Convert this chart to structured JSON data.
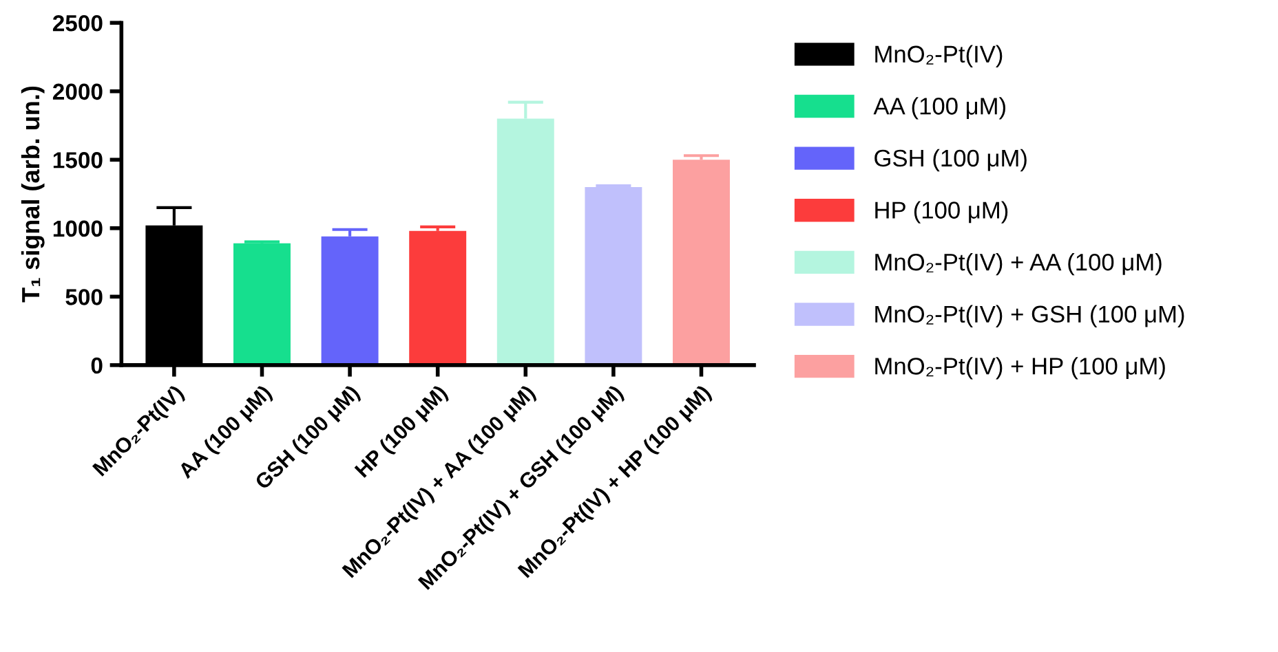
{
  "chart_data": {
    "type": "bar",
    "ylabel": "T₁ signal (arb. un.)",
    "categories": [
      "MnO₂-Pt(IV)",
      "AA (100 μM)",
      "GSH (100 μM)",
      "HP (100 μM)",
      "MnO₂-Pt(IV) + AA (100 μM)",
      "MnO₂-Pt(IV) + GSH (100 μM)",
      "MnO₂-Pt(IV) + HP (100 μM)"
    ],
    "series": [
      {
        "name": "MnO₂-Pt(IV)",
        "color": "#000000",
        "values": [
          1020,
          null,
          null,
          null,
          null,
          null,
          null
        ],
        "errors": [
          [
            1020,
            1150
          ],
          null,
          null,
          null,
          null,
          null,
          null
        ]
      },
      {
        "name": "AA (100 μM)",
        "color": "#16df8e",
        "values": [
          null,
          890,
          null,
          null,
          null,
          null,
          null
        ],
        "errors": [
          null,
          [
            890,
            900
          ],
          null,
          null,
          null,
          null,
          null
        ]
      },
      {
        "name": "GSH (100 μM)",
        "color": "#6464fa",
        "values": [
          null,
          null,
          940,
          null,
          null,
          null,
          null
        ],
        "errors": [
          null,
          null,
          [
            940,
            990
          ],
          null,
          null,
          null,
          null
        ]
      },
      {
        "name": "HP (100 μM)",
        "color": "#fc3c3c",
        "values": [
          null,
          null,
          null,
          980,
          null,
          null,
          null
        ],
        "errors": [
          null,
          null,
          null,
          [
            980,
            1010
          ],
          null,
          null,
          null
        ]
      },
      {
        "name": "MnO₂-Pt(IV) + AA (100 μM)",
        "color": "#b4f5df",
        "values": [
          null,
          null,
          null,
          null,
          1800,
          null,
          null
        ],
        "errors": [
          null,
          null,
          null,
          null,
          [
            1800,
            1920
          ],
          null,
          null
        ]
      },
      {
        "name": "MnO₂-Pt(IV) + GSH (100 μM)",
        "color": "#c0c0fc",
        "values": [
          null,
          null,
          null,
          null,
          null,
          1300,
          null
        ],
        "errors": [
          null,
          null,
          null,
          null,
          null,
          [
            1300,
            1310
          ],
          null
        ]
      },
      {
        "name": "MnO₂-Pt(IV) + HP (100 μM)",
        "color": "#fca0a0",
        "values": [
          null,
          null,
          null,
          null,
          null,
          null,
          1500
        ],
        "errors": [
          null,
          null,
          null,
          null,
          null,
          null,
          [
            1500,
            1530
          ]
        ]
      }
    ],
    "legend": "right",
    "ylim": [
      0,
      2500
    ],
    "yticks": [
      0,
      500,
      1000,
      1500,
      2000,
      2500
    ]
  }
}
